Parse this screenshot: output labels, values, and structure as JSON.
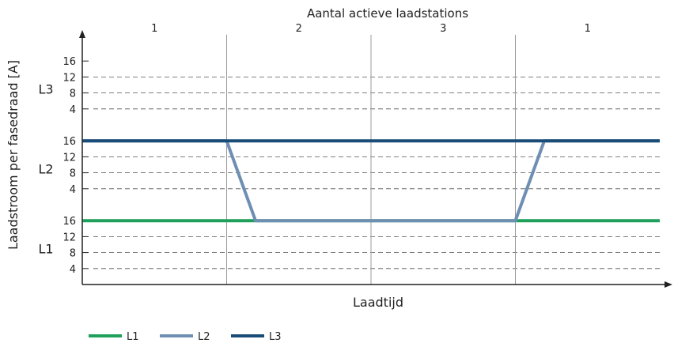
{
  "chart_data": {
    "type": "line",
    "title": "Aantal actieve laadstations",
    "xlabel": "Laadtijd",
    "ylabel": "Laadstroom per fasedraad [A]",
    "top_segments": [
      {
        "label": "1",
        "x_start": 0,
        "x_end": 1
      },
      {
        "label": "2",
        "x_start": 1,
        "x_end": 2
      },
      {
        "label": "3",
        "x_start": 2,
        "x_end": 3
      },
      {
        "label": "1",
        "x_start": 3,
        "x_end": 4
      }
    ],
    "phase_bands": [
      {
        "label": "L1",
        "ticks": [
          "4",
          "8",
          "12",
          "16"
        ]
      },
      {
        "label": "L2",
        "ticks": [
          "4",
          "8",
          "12",
          "16"
        ]
      },
      {
        "label": "L3",
        "ticks": [
          "4",
          "8",
          "12",
          "16"
        ]
      }
    ],
    "xlim": [
      0,
      4
    ],
    "ylim": [
      0,
      60
    ],
    "grid": true,
    "legend_position": "bottom-left",
    "series": [
      {
        "name": "L1",
        "color": "#1ea05a",
        "points": [
          [
            0,
            16
          ],
          [
            4,
            16
          ]
        ]
      },
      {
        "name": "L2",
        "color": "#6f8fb2",
        "points": [
          [
            0,
            36
          ],
          [
            1,
            36
          ],
          [
            1.2,
            16
          ],
          [
            3,
            16
          ],
          [
            3.2,
            36
          ],
          [
            4,
            36
          ]
        ]
      },
      {
        "name": "L3",
        "color": "#1a4c78",
        "points": [
          [
            0,
            36
          ],
          [
            4,
            36
          ]
        ]
      }
    ]
  }
}
